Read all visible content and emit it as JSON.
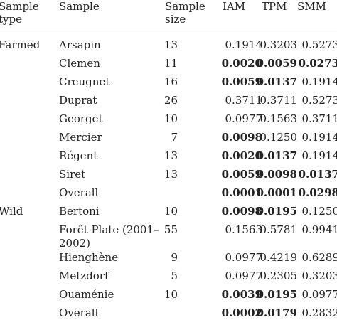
{
  "headers": {
    "sample_type": [
      "Sample",
      "type"
    ],
    "sample": "Sample",
    "sample_size": [
      "Sample",
      "size"
    ],
    "iam": "IAM",
    "tpm": "TPM",
    "smm": "SMM"
  },
  "rows": [
    {
      "type": "Farmed",
      "sample": [
        "Arsapin"
      ],
      "size": "13",
      "iam": "0.1914",
      "tpm": "0.3203",
      "smm": "0.5273",
      "bold": [
        false,
        false,
        false
      ]
    },
    {
      "type": "",
      "sample": [
        "Clemen"
      ],
      "size": "11",
      "iam": "0.0020",
      "tpm": "0.0059",
      "smm": "0.0273",
      "bold": [
        true,
        true,
        true
      ]
    },
    {
      "type": "",
      "sample": [
        "Creugnet"
      ],
      "size": "16",
      "iam": "0.0059",
      "tpm": "0.0137",
      "smm": "0.1914",
      "bold": [
        true,
        true,
        false
      ]
    },
    {
      "type": "",
      "sample": [
        "Duprat"
      ],
      "size": "26",
      "iam": "0.3711",
      "tpm": "0.3711",
      "smm": "0.5273",
      "bold": [
        false,
        false,
        false
      ]
    },
    {
      "type": "",
      "sample": [
        "Georget"
      ],
      "size": "10",
      "iam": "0.0977",
      "tpm": "0.1563",
      "smm": "0.3711",
      "bold": [
        false,
        false,
        false
      ]
    },
    {
      "type": "",
      "sample": [
        "Mercier"
      ],
      "size": "7",
      "iam": "0.0098",
      "tpm": "0.1250",
      "smm": "0.1914",
      "bold": [
        true,
        false,
        false
      ]
    },
    {
      "type": "",
      "sample": [
        "Régent"
      ],
      "size": "13",
      "iam": "0.0020",
      "tpm": "0.0137",
      "smm": "0.1914",
      "bold": [
        true,
        true,
        false
      ]
    },
    {
      "type": "",
      "sample": [
        "Siret"
      ],
      "size": "13",
      "iam": "0.0059",
      "tpm": "0.0098",
      "smm": "0.0137",
      "bold": [
        true,
        true,
        true
      ]
    },
    {
      "type": "",
      "sample": [
        "Overall"
      ],
      "size": "",
      "iam": "0.0001",
      "tpm": "0.0001",
      "smm": "0.0298",
      "bold": [
        true,
        true,
        true
      ]
    },
    {
      "type": "Wild",
      "sample": [
        "Bertoni"
      ],
      "size": "10",
      "iam": "0.0098",
      "tpm": "0.0195",
      "smm": "0.1250",
      "bold": [
        true,
        true,
        false
      ]
    },
    {
      "type": "",
      "sample": [
        "Forêt Plate (2001–",
        "2002)"
      ],
      "size": "55",
      "iam": "0.1563",
      "tpm": "0.5781",
      "smm": "0.9941",
      "bold": [
        false,
        false,
        false
      ]
    },
    {
      "type": "",
      "sample": [
        "Hienghène"
      ],
      "size": "9",
      "iam": "0.0977",
      "tpm": "0.4219",
      "smm": "0.6289",
      "bold": [
        false,
        false,
        false
      ]
    },
    {
      "type": "",
      "sample": [
        "Metzdorf"
      ],
      "size": "5",
      "iam": "0.0977",
      "tpm": "0.2305",
      "smm": "0.3203",
      "bold": [
        false,
        false,
        false
      ]
    },
    {
      "type": "",
      "sample": [
        "Ouaménie"
      ],
      "size": "10",
      "iam": "0.0039",
      "tpm": "0.0195",
      "smm": "0.0977",
      "bold": [
        true,
        true,
        false
      ]
    },
    {
      "type": "",
      "sample": [
        "Overall"
      ],
      "size": "",
      "iam": "0.0002",
      "tpm": "0.0179",
      "smm": "0.2832",
      "bold": [
        true,
        true,
        false
      ]
    }
  ]
}
